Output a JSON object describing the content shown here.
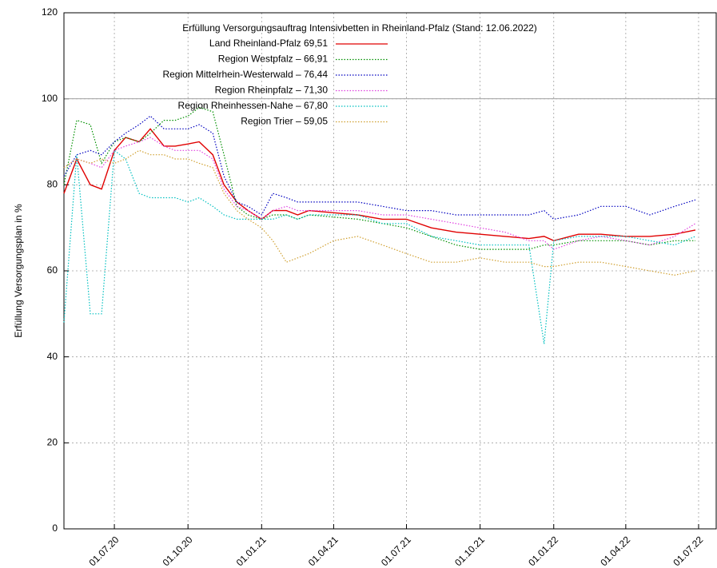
{
  "chart_data": {
    "type": "line",
    "title": "Erfüllung Versorgungsauftrag Intensivbetten in Rheinland-Pfalz (Stand: 12.06.2022)",
    "y_label": "Erfüllung Versorgungsplan in %",
    "x": [
      "29.04.20",
      "15.05.20",
      "01.06.20",
      "15.06.20",
      "01.07.20",
      "15.07.20",
      "01.08.20",
      "15.08.20",
      "01.09.20",
      "15.09.20",
      "01.10.20",
      "15.10.20",
      "01.11.20",
      "15.11.20",
      "01.12.20",
      "15.12.20",
      "01.01.21",
      "15.01.21",
      "01.02.21",
      "15.02.21",
      "01.03.21",
      "01.04.21",
      "01.05.21",
      "01.06.21",
      "01.07.21",
      "01.08.21",
      "01.09.21",
      "01.10.21",
      "01.11.21",
      "01.12.21",
      "20.12.21",
      "01.01.22",
      "01.02.22",
      "01.03.22",
      "01.04.22",
      "01.05.22",
      "01.06.22",
      "27.06.22"
    ],
    "xlim": [
      "29.04.20",
      "23.07.22"
    ],
    "xticks": [
      "01.07.20",
      "01.10.20",
      "01.01.21",
      "01.04.21",
      "01.07.21",
      "01.10.21",
      "01.01.22",
      "01.04.22",
      "01.07.22"
    ],
    "ylim": [
      0,
      120
    ],
    "yticks": [
      0,
      20,
      40,
      60,
      80,
      100,
      120
    ],
    "grid": true,
    "reference_line": 100,
    "series": [
      {
        "name": "Land Rheinland-Pfalz  69,51",
        "color": "#e00000",
        "style": "solid",
        "values": [
          78,
          86,
          80,
          79,
          88,
          91,
          90,
          93,
          89,
          89,
          89.5,
          90,
          87,
          80,
          76,
          74,
          72,
          74,
          74,
          73,
          74,
          73.5,
          73,
          72,
          72,
          70,
          69,
          68.5,
          68,
          67.5,
          68,
          67,
          68.5,
          68.5,
          68,
          68,
          68.5,
          69.5
        ]
      },
      {
        "name": "Region Westpfalz – 66,91",
        "color": "#009000",
        "style": "dotted",
        "values": [
          80,
          95,
          94,
          85,
          90,
          91,
          90,
          92,
          95,
          95,
          96,
          98,
          97,
          87,
          75,
          73,
          72,
          73,
          73,
          72,
          73,
          72.5,
          72,
          71,
          70,
          68,
          66,
          65,
          65,
          65,
          66,
          66,
          67,
          67,
          67,
          66,
          67,
          67
        ]
      },
      {
        "name": "Region Mittelrhein-Westerwald – 76,44",
        "color": "#0000c0",
        "style": "dotted",
        "values": [
          82,
          87,
          88,
          87,
          90,
          92,
          94,
          96,
          93,
          93,
          93,
          94,
          92,
          82,
          76,
          75,
          73,
          78,
          77,
          76,
          76,
          76,
          76,
          75,
          74,
          74,
          73,
          73,
          73,
          73,
          74,
          72,
          73,
          75,
          75,
          73,
          75,
          76.5
        ]
      },
      {
        "name": "Region Rheinpfalz – 71,30",
        "color": "#e040e0",
        "style": "dotted",
        "values": [
          84,
          86,
          85,
          84,
          88,
          89,
          90,
          91,
          89,
          88,
          88,
          88,
          86,
          79,
          75,
          74,
          72,
          74,
          75,
          74,
          74,
          74,
          74,
          73,
          73,
          72,
          71,
          70,
          69,
          67,
          67,
          65,
          67,
          68,
          67,
          66,
          68,
          71
        ]
      },
      {
        "name": "Region Rheinhessen-Nahe – 67,80",
        "color": "#00c0c0",
        "style": "dotted",
        "values": [
          48,
          87,
          50,
          50,
          88,
          86,
          78,
          77,
          77,
          77,
          76,
          77,
          75,
          73,
          72,
          72,
          72,
          72,
          73,
          72,
          73,
          73,
          73,
          71,
          71,
          68,
          67,
          66,
          66,
          66,
          43,
          67,
          68,
          68,
          68,
          67,
          66,
          68
        ]
      },
      {
        "name": "Region Trier – 59,05",
        "color": "#d0a030",
        "style": "dotted",
        "values": [
          84,
          86,
          85,
          86,
          85,
          86,
          88,
          87,
          87,
          86,
          86,
          85,
          84,
          78,
          74,
          72,
          70,
          67,
          62,
          63,
          64,
          67,
          68,
          66,
          64,
          62,
          62,
          63,
          62,
          62,
          61,
          61,
          62,
          62,
          61,
          60,
          59,
          60
        ]
      }
    ]
  }
}
